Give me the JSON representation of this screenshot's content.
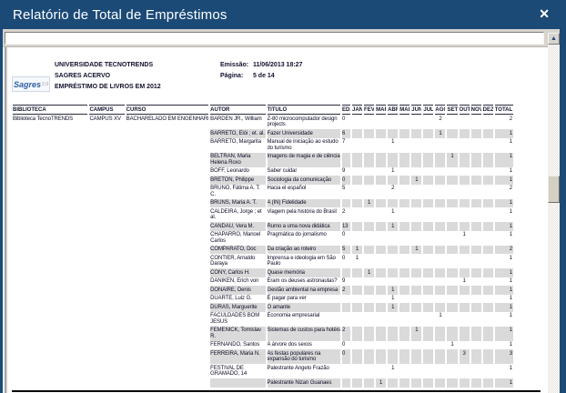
{
  "window": {
    "title": "Relatório de Total de Empréstimos",
    "close_icon": "✕",
    "scroll_up_icon": "▲"
  },
  "colors": {
    "titlebar_navy": "#1b4a77",
    "row_shade_gray": "#dadada",
    "logo_blue": "#2f5fa3"
  },
  "report_header": {
    "logo_word": "Sagres",
    "logo_version": "2.0",
    "org_lines": [
      "UNIVERSIDADE TECNOTRENDS",
      "SAGRES ACERVO",
      "EMPRÉSTIMO DE LIVROS EM 2012"
    ],
    "emissao_label": "Emissão:",
    "emissao_value": "11/06/2013 18:27",
    "pagina_label": "Página:",
    "pagina_value": "5 de 14"
  },
  "table": {
    "headers": [
      "BIBLIOTECA",
      "CAMPUS",
      "CURSO",
      "AUTOR",
      "TITULO",
      "ED.",
      "JAN",
      "FEV",
      "MAR",
      "ABR",
      "MAI",
      "JUN",
      "JUL",
      "AGO",
      "SET",
      "OUT",
      "NOV",
      "DEZ",
      "TOTAL"
    ],
    "rows": [
      {
        "biblioteca": "Biblioteca TecnoTRENDS",
        "campus": "CAMPUS XV",
        "curso": "BACHARELADO EM ENGENHARIA DE AUT",
        "autor": "BARDEN JR., William",
        "titulo": "Z-80 microcomputador design projects",
        "ed": "0",
        "months": [
          "",
          "",
          "",
          "",
          "",
          "",
          "",
          "2",
          "",
          "",
          "",
          ""
        ],
        "total": "2"
      },
      {
        "biblioteca": "",
        "campus": "",
        "curso": "",
        "autor": "BARRETO, Elói ; et. al.",
        "titulo": "Fazer Universidade",
        "ed": "6",
        "months": [
          "",
          "",
          "",
          "",
          "",
          "",
          "",
          "1",
          "",
          "",
          "",
          ""
        ],
        "total": "1"
      },
      {
        "biblioteca": "",
        "campus": "",
        "curso": "",
        "autor": "BARRETO, Margarita",
        "titulo": "Manual de iniciação ao estudo do turismo",
        "ed": "7",
        "months": [
          "",
          "",
          "",
          "1",
          "",
          "",
          "",
          "",
          "",
          "",
          "",
          ""
        ],
        "total": "1"
      },
      {
        "biblioteca": "",
        "campus": "",
        "curso": "",
        "autor": "BELTRAN, Maria Helena Roxo",
        "titulo": "Imagens de magia e de ciência",
        "ed": "",
        "months": [
          "",
          "",
          "",
          "",
          "",
          "",
          "",
          "",
          "1",
          "",
          "",
          ""
        ],
        "total": "1"
      },
      {
        "biblioteca": "",
        "campus": "",
        "curso": "",
        "autor": "BOFF, Leonardo",
        "titulo": "Saber cuidar",
        "ed": "9",
        "months": [
          "",
          "",
          "",
          "1",
          "",
          "",
          "",
          "",
          "",
          "",
          "",
          ""
        ],
        "total": "1"
      },
      {
        "biblioteca": "",
        "campus": "",
        "curso": "",
        "autor": "BRETON, Philippe",
        "titulo": "Sociologia da comunicação",
        "ed": "0",
        "months": [
          "",
          "",
          "",
          "",
          "",
          "1",
          "",
          "",
          "",
          "",
          "",
          ""
        ],
        "total": "1"
      },
      {
        "biblioteca": "",
        "campus": "",
        "curso": "",
        "autor": "BRUNO, Fátima A. T. C.",
        "titulo": "Hacia el español",
        "ed": "5",
        "months": [
          "",
          "",
          "",
          "2",
          "",
          "",
          "",
          "",
          "",
          "",
          "",
          ""
        ],
        "total": "2"
      },
      {
        "biblioteca": "",
        "campus": "",
        "curso": "",
        "autor": "BRUNS, Maria A. T.",
        "titulo": "A (IN) Fidelidade",
        "ed": "",
        "months": [
          "",
          "1",
          "",
          "",
          "",
          "",
          "",
          "",
          "",
          "",
          "",
          ""
        ],
        "total": "1"
      },
      {
        "biblioteca": "",
        "campus": "",
        "curso": "",
        "autor": "CALDEIRA, Jorge ; et al.",
        "titulo": "Viagem pela história do Brasil",
        "ed": "2",
        "months": [
          "",
          "",
          "",
          "1",
          "",
          "",
          "",
          "",
          "",
          "",
          "",
          ""
        ],
        "total": "1"
      },
      {
        "biblioteca": "",
        "campus": "",
        "curso": "",
        "autor": "CANDAU, Vera M.",
        "titulo": "Rumo a uma nova didática",
        "ed": "13",
        "months": [
          "",
          "",
          "",
          "1",
          "",
          "",
          "",
          "",
          "",
          "",
          "",
          ""
        ],
        "total": "1"
      },
      {
        "biblioteca": "",
        "campus": "",
        "curso": "",
        "autor": "CHAPARRO, Manoel Carlos",
        "titulo": "Pragmática do jornalismo",
        "ed": "0",
        "months": [
          "",
          "",
          "",
          "",
          "",
          "",
          "",
          "",
          "",
          "1",
          "",
          ""
        ],
        "total": "1"
      },
      {
        "biblioteca": "",
        "campus": "",
        "curso": "",
        "autor": "COMPARATO, Doc",
        "titulo": "Da criação ao roteiro",
        "ed": "5",
        "months": [
          "1",
          "",
          "",
          "",
          "",
          "1",
          "",
          "",
          "",
          "",
          "",
          ""
        ],
        "total": "2"
      },
      {
        "biblioteca": "",
        "campus": "",
        "curso": "",
        "autor": "CONTIER, Arnaldo Daraya",
        "titulo": "Imprensa e ideologia em São Paulo",
        "ed": "0",
        "months": [
          "1",
          "",
          "",
          "",
          "",
          "",
          "",
          "",
          "",
          "",
          "",
          ""
        ],
        "total": "1"
      },
      {
        "biblioteca": "",
        "campus": "",
        "curso": "",
        "autor": "CONY, Carlos H.",
        "titulo": "Quase memória",
        "ed": "",
        "months": [
          "",
          "1",
          "",
          "",
          "",
          "",
          "",
          "",
          "",
          "",
          "",
          ""
        ],
        "total": "1"
      },
      {
        "biblioteca": "",
        "campus": "",
        "curso": "",
        "autor": "DÄNIKEN, Erich von",
        "titulo": "Eram os deuses astronautas?",
        "ed": "9",
        "months": [
          "",
          "",
          "",
          "",
          "",
          "",
          "",
          "",
          "",
          "1",
          "",
          ""
        ],
        "total": "1"
      },
      {
        "biblioteca": "",
        "campus": "",
        "curso": "",
        "autor": "DONAIRE, Denis",
        "titulo": "Gestão ambiental na empresa",
        "ed": "2",
        "months": [
          "",
          "",
          "",
          "1",
          "",
          "",
          "",
          "",
          "",
          "",
          "",
          ""
        ],
        "total": "1"
      },
      {
        "biblioteca": "",
        "campus": "",
        "curso": "",
        "autor": "DUARTE, Luiz G.",
        "titulo": "É pagar para ver",
        "ed": "",
        "months": [
          "",
          "",
          "",
          "1",
          "",
          "",
          "",
          "",
          "",
          "",
          "",
          ""
        ],
        "total": "1"
      },
      {
        "biblioteca": "",
        "campus": "",
        "curso": "",
        "autor": "DURAS, Marguerite",
        "titulo": "O amante",
        "ed": "",
        "months": [
          "",
          "",
          "",
          "1",
          "",
          "",
          "",
          "",
          "",
          "",
          "",
          ""
        ],
        "total": "1"
      },
      {
        "biblioteca": "",
        "campus": "",
        "curso": "",
        "autor": "FACULDADES BOM JESUS",
        "titulo": "Economia empresarial",
        "ed": "",
        "months": [
          "",
          "",
          "",
          "",
          "",
          "",
          "",
          "1",
          "",
          "",
          "",
          ""
        ],
        "total": "1"
      },
      {
        "biblioteca": "",
        "campus": "",
        "curso": "",
        "autor": "FEMENICK, Tomislav R.",
        "titulo": "Sistemas de custos para hotéis",
        "ed": "2",
        "months": [
          "",
          "",
          "",
          "",
          "",
          "1",
          "",
          "",
          "",
          "",
          "",
          ""
        ],
        "total": "1"
      },
      {
        "biblioteca": "",
        "campus": "",
        "curso": "",
        "autor": "FERNANDO, Santos",
        "titulo": "A árvore dos sexos",
        "ed": "0",
        "months": [
          "",
          "",
          "",
          "",
          "",
          "",
          "",
          "",
          "1",
          "",
          "",
          ""
        ],
        "total": "1"
      },
      {
        "biblioteca": "",
        "campus": "",
        "curso": "",
        "autor": "FERREIRA, Maria N.",
        "titulo": "As festas populares na expansão do turismo",
        "ed": "0",
        "months": [
          "",
          "",
          "",
          "",
          "",
          "",
          "",
          "",
          "",
          "3",
          "",
          ""
        ],
        "total": "3"
      },
      {
        "biblioteca": "",
        "campus": "",
        "curso": "",
        "autor": "FESTIVAL DE GRAMADO, 14",
        "titulo": "Palestrante Angelo Frazão",
        "ed": "",
        "months": [
          "",
          "",
          "",
          "1",
          "",
          "",
          "",
          "",
          "",
          "",
          "",
          ""
        ],
        "total": "1"
      },
      {
        "biblioteca": "",
        "campus": "",
        "curso": "",
        "autor": "",
        "titulo": "Palestrante Nizan Guanaes",
        "ed": "",
        "months": [
          "",
          "",
          "1",
          "",
          "",
          "",
          "",
          "",
          "",
          "",
          "",
          ""
        ],
        "total": "1"
      }
    ]
  }
}
